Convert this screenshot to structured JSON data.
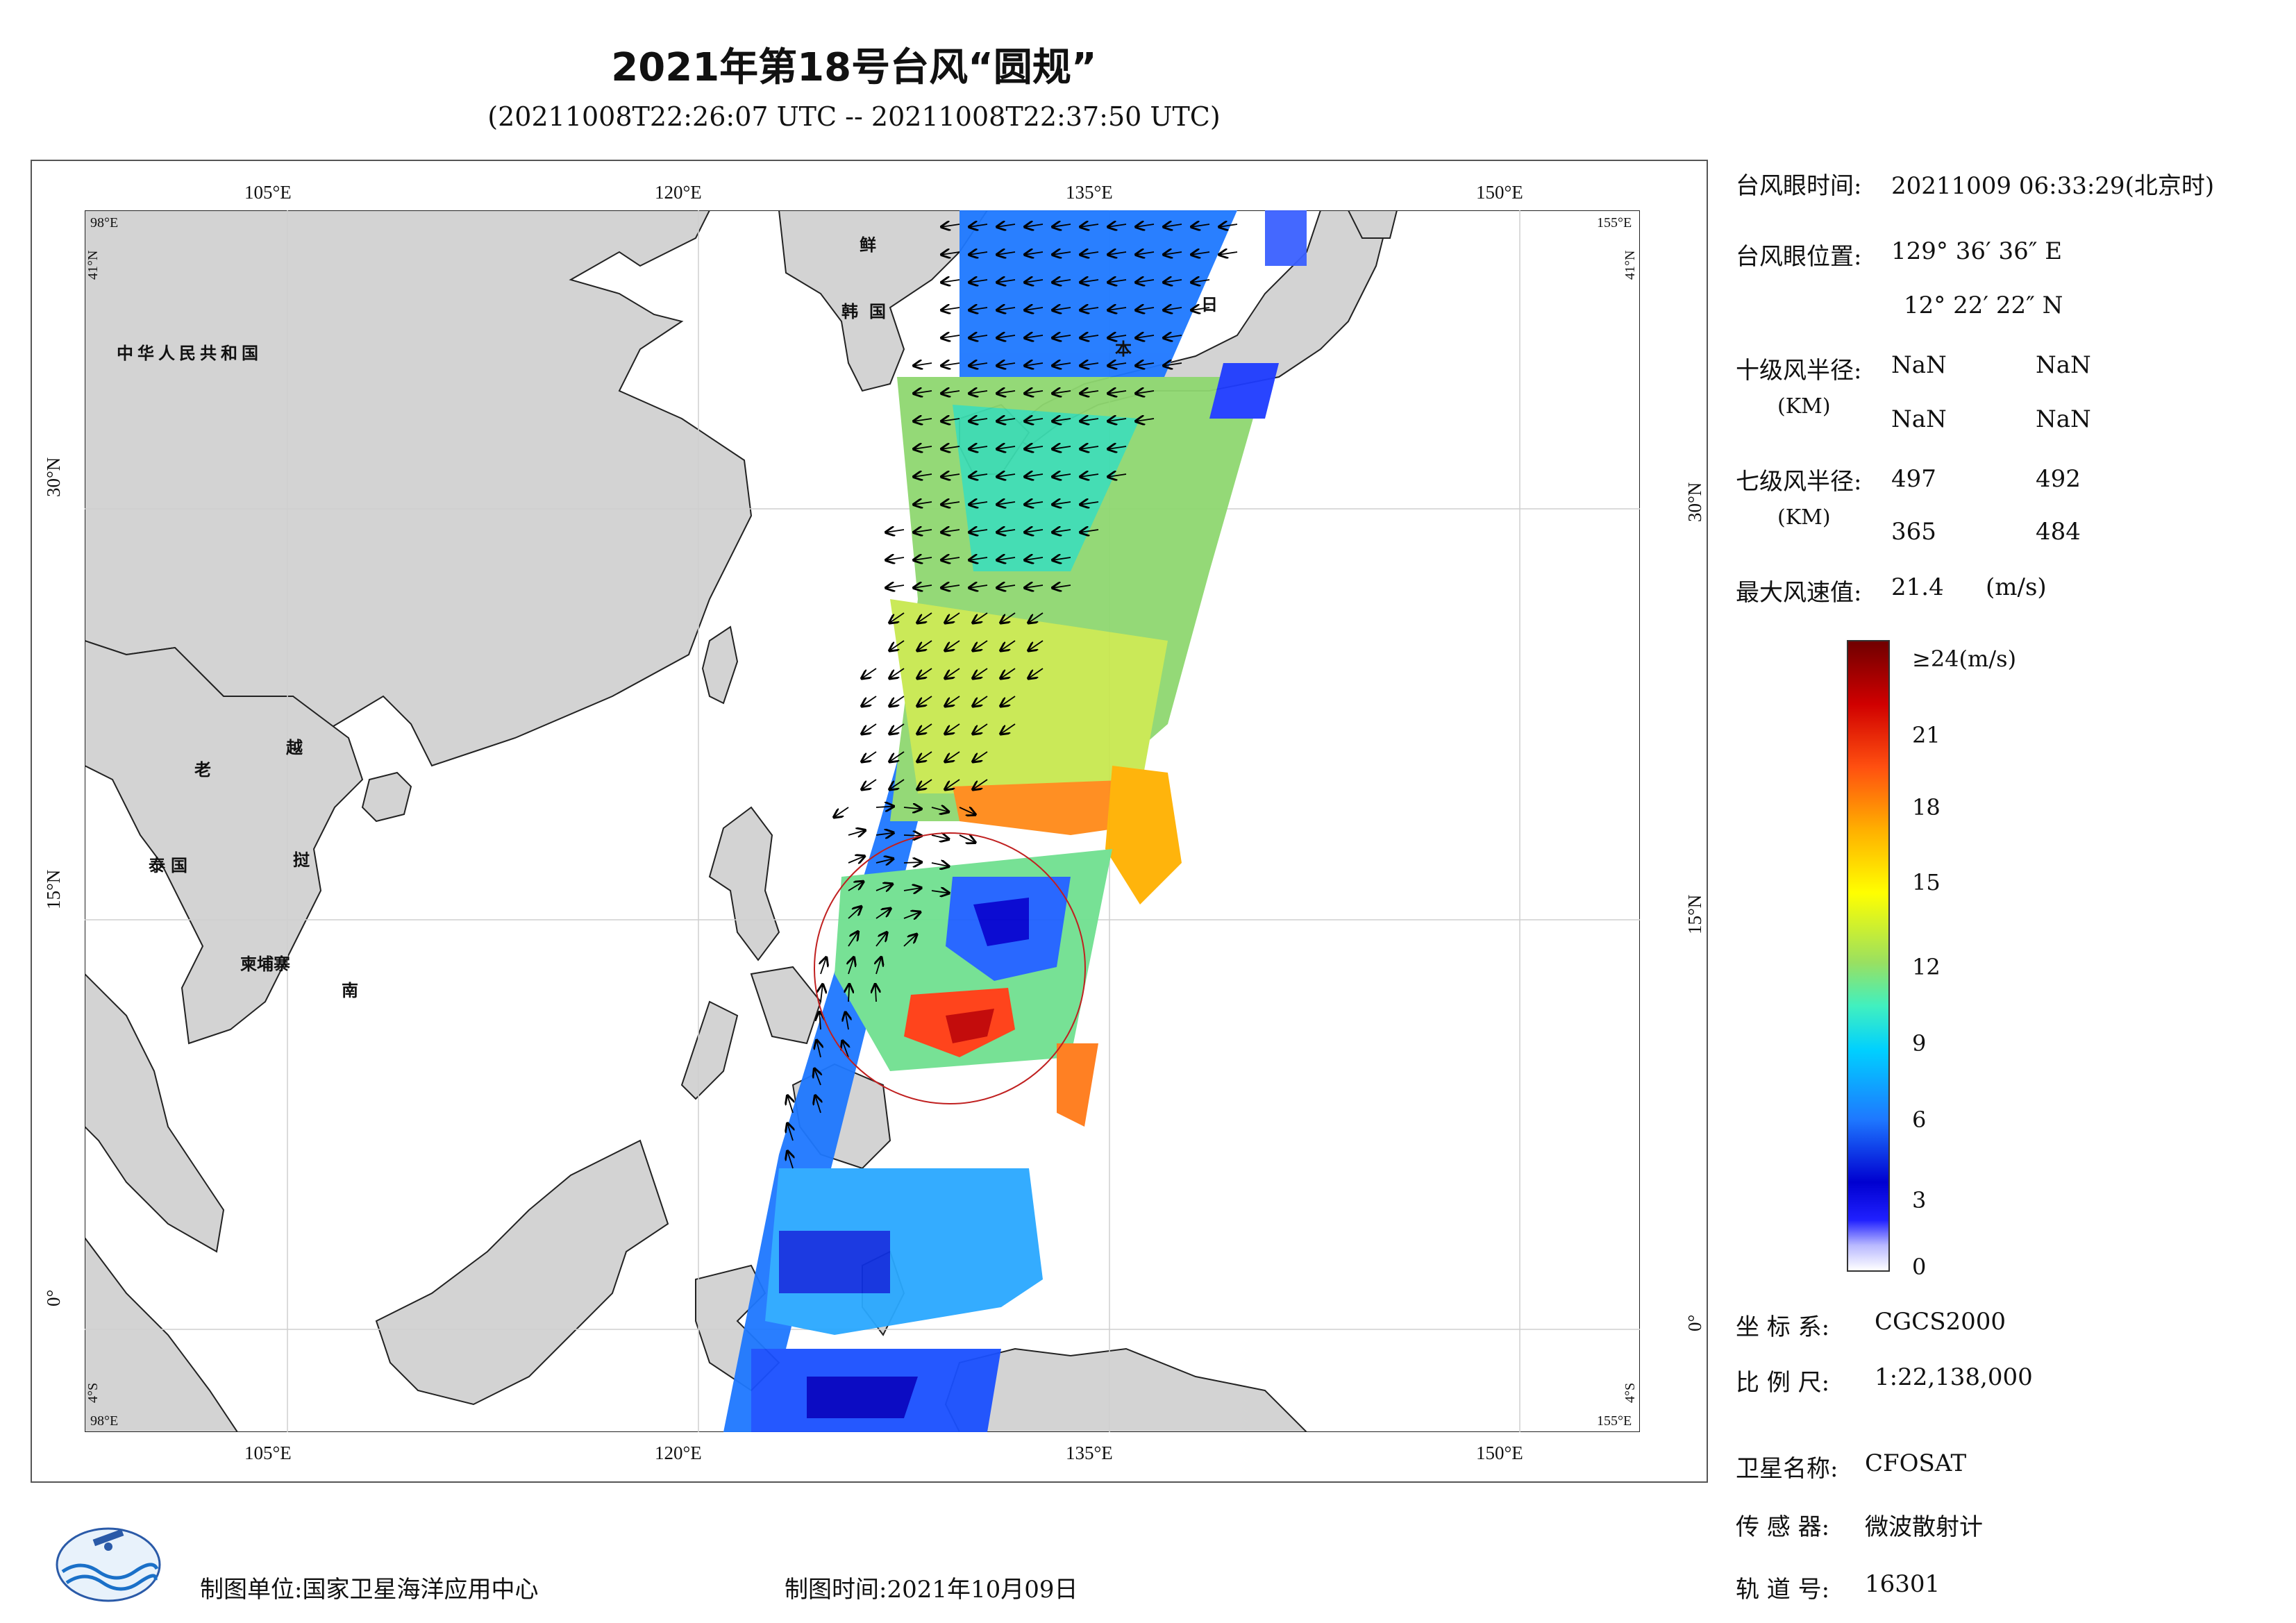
{
  "header": {
    "title": "2021年第18号台风“圆规”",
    "subtitle": "(20211008T22:26:07 UTC -- 20211008T22:37:50 UTC)"
  },
  "map": {
    "lon_ticks": [
      "105°E",
      "120°E",
      "135°E",
      "150°E"
    ],
    "lat_ticks": [
      "30°N",
      "15°N",
      "0°"
    ],
    "corner_labels": {
      "top_left_lon": "98°E",
      "top_left_lat": "41°N",
      "top_right_lon": "155°E",
      "top_right_lat": "41°N",
      "bottom_left_lon": "98°E",
      "bottom_left_lat": "4°S",
      "bottom_right_lon": "155°E",
      "bottom_right_lat": "4°S"
    },
    "place_labels": {
      "china": "中华人民共和国",
      "laos": "老",
      "vietnam_1": "越",
      "thailand": "泰国",
      "cambodia": "柬埔寨",
      "vietnam_2": "南",
      "vietnam_3": "挝",
      "korea_n": "鲜",
      "korea_s": "韩国",
      "japan_1": "日",
      "japan_2": "本"
    },
    "typhoon_center": {
      "lon": 129.61,
      "lat": 12.37
    }
  },
  "info": {
    "eye_time_label": "台风眼时间:",
    "eye_time_value": "20211009 06:33:29(北京时)",
    "eye_pos_label": "台风眼位置:",
    "eye_pos_lon": "129° 36′ 36″ E",
    "eye_pos_lat": "12° 22′ 22″ N",
    "r10_label": "十级风半径:",
    "r10_unit": "(KM)",
    "r10_values": [
      "NaN",
      "NaN",
      "NaN",
      "NaN"
    ],
    "r7_label": "七级风半径:",
    "r7_unit": "(KM)",
    "r7_values": [
      "497",
      "492",
      "365",
      "484"
    ],
    "max_wind_label": "最大风速值:",
    "max_wind_value": "21.4",
    "max_wind_unit": "(m/s)"
  },
  "colorbar": {
    "top_label": "≥24(m/s)",
    "ticks": [
      "21",
      "18",
      "15",
      "12",
      "9",
      "6",
      "3",
      "0"
    ],
    "range": [
      0,
      24
    ]
  },
  "meta": {
    "coord_label": "坐 标 系:",
    "coord_value": "CGCS2000",
    "scale_label": "比 例 尺:",
    "scale_value": "1:22,138,000",
    "satellite_label": "卫星名称:",
    "satellite_value": "CFOSAT",
    "sensor_label": "传 感 器:",
    "sensor_value": "微波散射计",
    "orbit_label": "轨 道 号:",
    "orbit_value": "16301"
  },
  "footer": {
    "org_label": "制图单位:",
    "org_value": "国家卫星海洋应用中心",
    "date_label": "制图时间:",
    "date_value": "2021年10月09日"
  }
}
